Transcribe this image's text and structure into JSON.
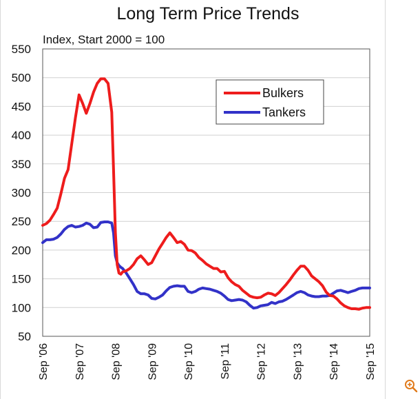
{
  "colors": {
    "bulkers": "#ee1c1c",
    "tankers": "#3232c8",
    "zoom_icon": "#e07a1a"
  },
  "zoom_icon": "zoom-in-icon",
  "chart_data": {
    "type": "line",
    "title": "Long Term Price Trends",
    "subtitle": "Index, Start 2000 = 100",
    "xlabel": "",
    "ylabel": "",
    "ylim": [
      50,
      550
    ],
    "yticks": [
      50,
      100,
      150,
      200,
      250,
      300,
      350,
      400,
      450,
      500,
      550
    ],
    "xlim": [
      2006.7,
      2015.7
    ],
    "xticks": [
      {
        "x": 2006.7,
        "label": "Sep '06"
      },
      {
        "x": 2007.7,
        "label": "Sep '07"
      },
      {
        "x": 2008.7,
        "label": "Sep '08"
      },
      {
        "x": 2009.7,
        "label": "Sep '09"
      },
      {
        "x": 2010.7,
        "label": "Sep '10"
      },
      {
        "x": 2011.7,
        "label": "Sep '11"
      },
      {
        "x": 2012.7,
        "label": "Sep '12"
      },
      {
        "x": 2013.7,
        "label": "Sep '13"
      },
      {
        "x": 2014.7,
        "label": "Sep '14"
      },
      {
        "x": 2015.7,
        "label": "Sep '15"
      }
    ],
    "grid": true,
    "legend_position": "top-right",
    "series": [
      {
        "name": "Bulkers",
        "x": [
          2006.7,
          2006.8,
          2006.9,
          2007.0,
          2007.1,
          2007.2,
          2007.3,
          2007.4,
          2007.5,
          2007.6,
          2007.7,
          2007.8,
          2007.9,
          2008.0,
          2008.1,
          2008.2,
          2008.3,
          2008.4,
          2008.5,
          2008.6,
          2008.65,
          2008.7,
          2008.75,
          2008.8,
          2008.85,
          2008.9,
          2009.0,
          2009.1,
          2009.2,
          2009.3,
          2009.4,
          2009.5,
          2009.6,
          2009.7,
          2009.8,
          2009.9,
          2010.0,
          2010.1,
          2010.2,
          2010.3,
          2010.4,
          2010.5,
          2010.6,
          2010.7,
          2010.8,
          2010.9,
          2011.0,
          2011.1,
          2011.2,
          2011.3,
          2011.4,
          2011.5,
          2011.6,
          2011.7,
          2011.8,
          2011.9,
          2012.0,
          2012.1,
          2012.2,
          2012.3,
          2012.4,
          2012.5,
          2012.6,
          2012.7,
          2012.8,
          2012.9,
          2013.0,
          2013.1,
          2013.2,
          2013.3,
          2013.4,
          2013.5,
          2013.6,
          2013.7,
          2013.8,
          2013.9,
          2014.0,
          2014.1,
          2014.2,
          2014.3,
          2014.4,
          2014.5,
          2014.6,
          2014.7,
          2014.8,
          2014.9,
          2015.0,
          2015.1,
          2015.2,
          2015.3,
          2015.4,
          2015.5,
          2015.6,
          2015.7
        ],
        "values": [
          243,
          246,
          252,
          262,
          273,
          298,
          325,
          340,
          385,
          430,
          470,
          455,
          438,
          455,
          475,
          490,
          498,
          498,
          490,
          440,
          340,
          230,
          175,
          160,
          158,
          162,
          164,
          168,
          175,
          185,
          190,
          183,
          175,
          178,
          190,
          202,
          212,
          222,
          230,
          222,
          213,
          215,
          210,
          200,
          199,
          195,
          187,
          182,
          176,
          172,
          168,
          168,
          162,
          163,
          152,
          145,
          140,
          137,
          130,
          125,
          120,
          118,
          117,
          118,
          122,
          125,
          124,
          121,
          126,
          133,
          140,
          148,
          157,
          165,
          172,
          172,
          165,
          155,
          150,
          145,
          138,
          127,
          121,
          120,
          115,
          108,
          103,
          100,
          98,
          98,
          97,
          99,
          100,
          100
        ]
      },
      {
        "name": "Tankers",
        "x": [
          2006.7,
          2006.8,
          2006.9,
          2007.0,
          2007.1,
          2007.2,
          2007.3,
          2007.4,
          2007.5,
          2007.6,
          2007.7,
          2007.8,
          2007.9,
          2008.0,
          2008.1,
          2008.2,
          2008.3,
          2008.4,
          2008.5,
          2008.6,
          2008.65,
          2008.7,
          2008.75,
          2008.8,
          2008.85,
          2008.9,
          2009.0,
          2009.1,
          2009.2,
          2009.3,
          2009.4,
          2009.5,
          2009.6,
          2009.7,
          2009.8,
          2009.9,
          2010.0,
          2010.1,
          2010.2,
          2010.3,
          2010.4,
          2010.5,
          2010.6,
          2010.7,
          2010.8,
          2010.9,
          2011.0,
          2011.1,
          2011.2,
          2011.3,
          2011.4,
          2011.5,
          2011.6,
          2011.7,
          2011.8,
          2011.9,
          2012.0,
          2012.1,
          2012.2,
          2012.3,
          2012.4,
          2012.5,
          2012.6,
          2012.7,
          2012.8,
          2012.9,
          2013.0,
          2013.1,
          2013.2,
          2013.3,
          2013.4,
          2013.5,
          2013.6,
          2013.7,
          2013.8,
          2013.9,
          2014.0,
          2014.1,
          2014.2,
          2014.3,
          2014.4,
          2014.5,
          2014.6,
          2014.7,
          2014.8,
          2014.9,
          2015.0,
          2015.1,
          2015.2,
          2015.3,
          2015.4,
          2015.5,
          2015.6,
          2015.7
        ],
        "values": [
          213,
          218,
          218,
          219,
          222,
          228,
          236,
          241,
          243,
          240,
          241,
          243,
          247,
          245,
          239,
          240,
          248,
          249,
          249,
          247,
          230,
          190,
          178,
          173,
          170,
          168,
          160,
          150,
          140,
          128,
          124,
          124,
          122,
          116,
          115,
          118,
          122,
          129,
          135,
          137,
          138,
          137,
          137,
          128,
          126,
          128,
          132,
          134,
          133,
          132,
          130,
          128,
          125,
          120,
          114,
          112,
          113,
          114,
          113,
          110,
          104,
          99,
          100,
          103,
          104,
          105,
          109,
          107,
          110,
          111,
          114,
          118,
          122,
          126,
          128,
          126,
          122,
          120,
          119,
          119,
          120,
          120,
          121,
          125,
          129,
          130,
          128,
          126,
          128,
          130,
          133,
          134,
          134,
          134
        ]
      }
    ]
  }
}
